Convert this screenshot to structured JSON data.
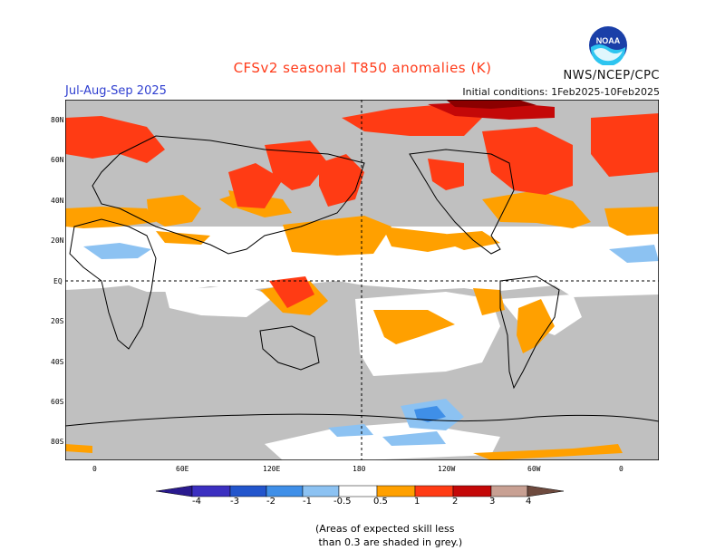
{
  "title": "CFSv2 seasonal T850 anomalies (K)",
  "season": "Jul-Aug-Sep 2025",
  "initial_conditions": "Initial conditions: 1Feb2025-10Feb2025",
  "agency": "NWS/NCEP/CPC",
  "logo_text": "NOAA",
  "lat_labels": [
    "80N",
    "60N",
    "40N",
    "20N",
    "EQ",
    "20S",
    "40S",
    "60S",
    "80S"
  ],
  "lon_labels": [
    "0",
    "60E",
    "120E",
    "180",
    "120W",
    "60W",
    "0"
  ],
  "colorbar": {
    "labels": [
      "-4",
      "-3",
      "-2",
      "-1",
      "-0.5",
      "0.5",
      "1",
      "2",
      "3",
      "4"
    ],
    "colors": {
      "lt_-4": "#2a1a8f",
      "-4_-3": "#3b2fc0",
      "-3_-2": "#2255cc",
      "-2_-1": "#3f8fe8",
      "-1_-0.5": "#8cc2f2",
      "-0.5_0.5": "#ffffff",
      "0.5_1": "#ffa000",
      "1_2": "#ff3b14",
      "2_3": "#c40808",
      "3_4": "#8b0000",
      "4_5": "#c8a093",
      "gt_5": "#6e4a3e"
    }
  },
  "colors": {
    "grey_low_skill": "#c0c0c0",
    "title": "#ff3b1a",
    "season": "#2f3fd0"
  },
  "note": "(Areas of expected skill less\n than 0.3 are shaded in grey.)"
}
